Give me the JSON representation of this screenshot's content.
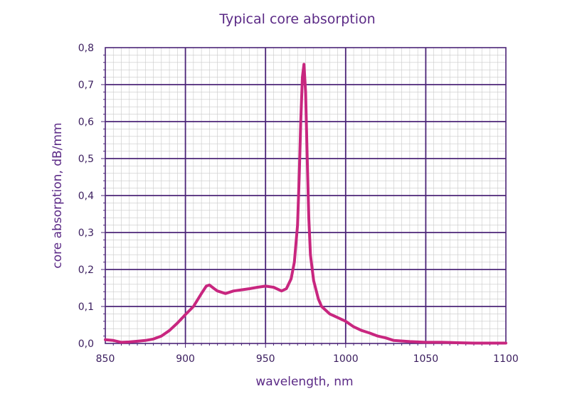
{
  "chart_data": {
    "type": "line",
    "title": "Typical core absorption",
    "xlabel": "wavelength, nm",
    "ylabel": "core absorption, dB/mm",
    "xlim": [
      850,
      1100
    ],
    "ylim": [
      0.0,
      0.8
    ],
    "x_ticks": [
      850,
      900,
      950,
      1000,
      1050,
      1100
    ],
    "x_tick_labels": [
      "850",
      "900",
      "950",
      "1000",
      "1050",
      "1100"
    ],
    "y_ticks": [
      0.0,
      0.1,
      0.2,
      0.3,
      0.4,
      0.5,
      0.6,
      0.7,
      0.8
    ],
    "y_tick_labels": [
      "0,0",
      "0,1",
      "0,2",
      "0,3",
      "0,4",
      "0,5",
      "0,6",
      "0,7",
      "0,8"
    ],
    "grid": true,
    "legend": "none",
    "colors": {
      "line": "#c8267f",
      "frame": "#4b2477",
      "major_grid": "#4b2477",
      "minor_grid": "#c9c9c9",
      "text": "#5b2a86"
    },
    "series": [
      {
        "x": [
          850,
          855,
          860,
          865,
          870,
          875,
          880,
          885,
          890,
          895,
          900,
          905,
          910,
          913,
          915,
          918,
          920,
          925,
          930,
          935,
          940,
          945,
          950,
          955,
          960,
          963,
          966,
          968,
          970,
          971,
          972,
          973,
          974,
          975,
          976,
          977,
          978,
          980,
          983,
          985,
          990,
          995,
          1000,
          1005,
          1010,
          1015,
          1020,
          1025,
          1030,
          1040,
          1050,
          1060,
          1070,
          1080,
          1090,
          1100
        ],
        "y": [
          0.01,
          0.008,
          0.003,
          0.004,
          0.006,
          0.008,
          0.012,
          0.02,
          0.035,
          0.055,
          0.078,
          0.1,
          0.135,
          0.155,
          0.158,
          0.148,
          0.142,
          0.135,
          0.142,
          0.145,
          0.148,
          0.152,
          0.155,
          0.152,
          0.142,
          0.148,
          0.175,
          0.22,
          0.32,
          0.45,
          0.6,
          0.72,
          0.755,
          0.68,
          0.5,
          0.34,
          0.24,
          0.17,
          0.12,
          0.1,
          0.08,
          0.07,
          0.06,
          0.045,
          0.035,
          0.028,
          0.02,
          0.015,
          0.008,
          0.005,
          0.003,
          0.003,
          0.002,
          0.001,
          0.001,
          0.001
        ]
      }
    ]
  }
}
